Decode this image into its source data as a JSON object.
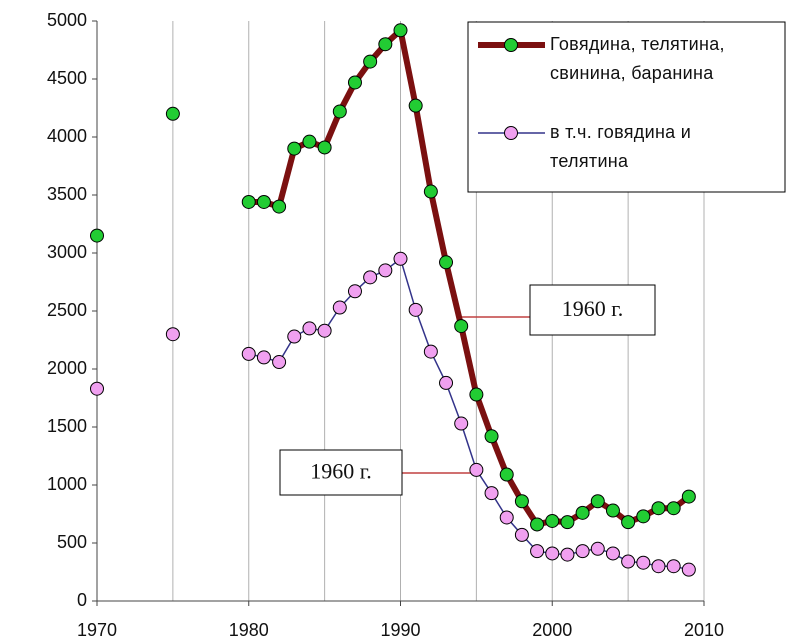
{
  "chart_data": {
    "type": "line",
    "x": [
      1970,
      1971,
      1972,
      1973,
      1974,
      1975,
      1976,
      1977,
      1978,
      1979,
      1980,
      1981,
      1982,
      1983,
      1984,
      1985,
      1986,
      1987,
      1988,
      1989,
      1990,
      1991,
      1992,
      1993,
      1994,
      1995,
      1996,
      1997,
      1998,
      1999,
      2000,
      2001,
      2002,
      2003,
      2004,
      2005,
      2006,
      2007,
      2008,
      2009
    ],
    "series": [
      {
        "name": "Говядина, телятина, свинина, баранина",
        "color": "#7b1010",
        "marker_color": "#22cc33",
        "values": [
          3150,
          null,
          null,
          null,
          null,
          4200,
          null,
          null,
          null,
          null,
          3440,
          3440,
          3400,
          3900,
          3960,
          3910,
          4220,
          4470,
          4650,
          4800,
          4920,
          4270,
          3530,
          2920,
          2370,
          1780,
          1420,
          1090,
          860,
          660,
          690,
          680,
          760,
          860,
          780,
          680,
          730,
          800,
          800,
          900
        ]
      },
      {
        "name": "в т.ч. говядина и телятина",
        "color": "#33338a",
        "marker_color": "#f0a0f0",
        "values": [
          1830,
          null,
          null,
          null,
          null,
          2300,
          null,
          null,
          null,
          null,
          2130,
          2100,
          2060,
          2280,
          2350,
          2330,
          2530,
          2670,
          2790,
          2850,
          2950,
          2510,
          2150,
          1880,
          1530,
          1130,
          930,
          720,
          570,
          430,
          410,
          400,
          430,
          450,
          410,
          340,
          330,
          300,
          300,
          270
        ]
      }
    ],
    "xlim": [
      1970,
      2010
    ],
    "xticks": [
      1970,
      1980,
      1990,
      2000,
      2010
    ],
    "xgrid": [
      1970,
      1975,
      1980,
      1985,
      1990,
      1995,
      2000,
      2005,
      2010
    ],
    "ylim": [
      0,
      5000
    ],
    "yticks": [
      0,
      500,
      1000,
      1500,
      2000,
      2500,
      3000,
      3500,
      4000,
      4500,
      5000
    ],
    "annotations": [
      "1960 г.",
      "1960 г."
    ],
    "legend": "upper right"
  }
}
